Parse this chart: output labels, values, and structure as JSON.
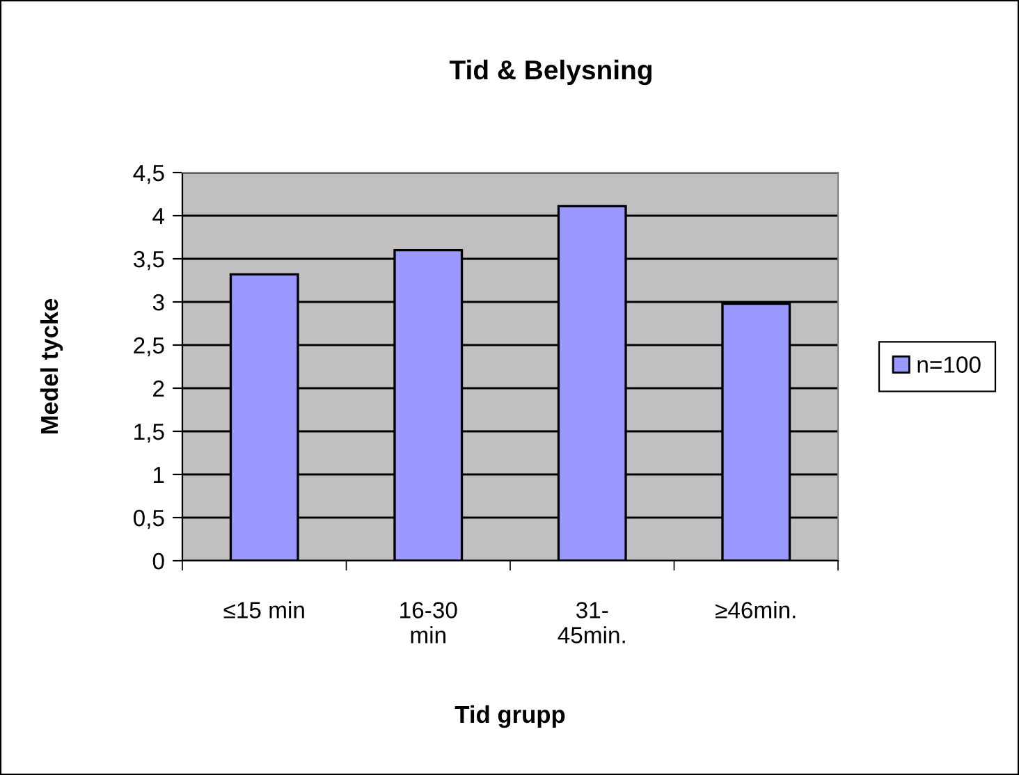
{
  "chart_data": {
    "type": "bar",
    "title": "Tid & Belysning",
    "xlabel": "Tid grupp",
    "ylabel": "Medel tycke",
    "categories": [
      "≤15 min",
      "16-30\nmin",
      "31-\n45min.",
      "≥46min."
    ],
    "series": [
      {
        "name": "n=100",
        "color": "#9999ff",
        "values": [
          3.32,
          3.6,
          4.11,
          2.98
        ]
      }
    ],
    "ylim": [
      0,
      4.5
    ],
    "yticks": [
      0,
      {
        "value": 0.5,
        "label": "0,5"
      },
      1,
      {
        "value": 1.5,
        "label": "1,5"
      },
      2,
      {
        "value": 2.5,
        "label": "2,5"
      },
      3,
      {
        "value": 3.5,
        "label": "3,5"
      },
      4,
      {
        "value": 4.5,
        "label": "4,5"
      }
    ],
    "grid": "y",
    "legend": "right"
  }
}
